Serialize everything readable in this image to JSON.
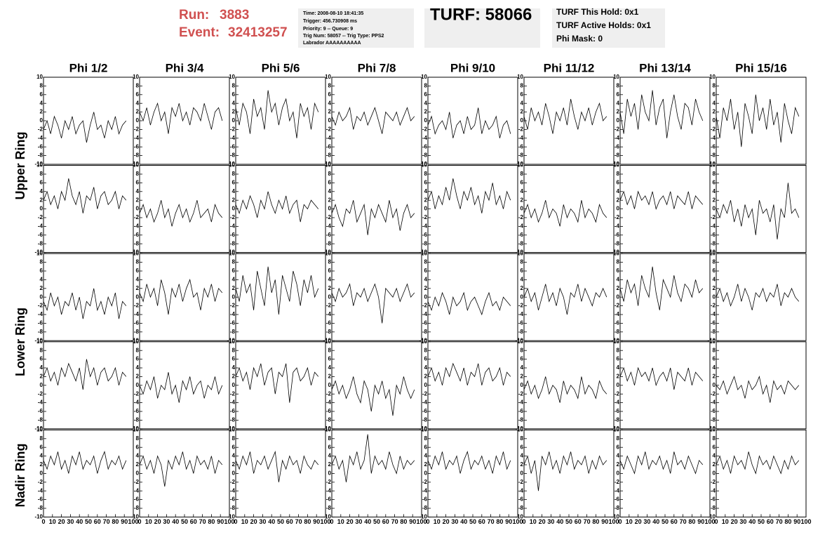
{
  "header": {
    "run_label": "Run:",
    "run_number": "3883",
    "event_label": "Event:",
    "event_number": "32413257",
    "info_lines": [
      "Time: 2008-08-10 18:41:35",
      "Trigger: 456.730908 ms",
      "Priority: 9 -- Queue: 9",
      "Trig Num: 58057 -- Trig Type: PPS2",
      "Labrador AAAAAAAAAA"
    ],
    "turf": "TURF: 58066",
    "turf_lines": [
      "TURF This Hold: 0x1",
      "TURF Active Holds: 0x1",
      "Phi Mask: 0"
    ]
  },
  "columns": [
    "Phi 1/2",
    "Phi 3/4",
    "Phi 5/6",
    "Phi 7/8",
    "Phi 9/10",
    "Phi 11/12",
    "Phi 13/14",
    "Phi 15/16"
  ],
  "row_labels": [
    "Upper Ring",
    "Lower Ring",
    "Nadir Ring"
  ],
  "axes": {
    "x": [
      0,
      4,
      8,
      12,
      16,
      20,
      24,
      28,
      32,
      36,
      40,
      44,
      48,
      52,
      56,
      60,
      64,
      68,
      72,
      76,
      80,
      84,
      88,
      92
    ],
    "xlim": [
      0,
      100
    ],
    "xticks": [
      0,
      10,
      20,
      30,
      40,
      50,
      60,
      70,
      80,
      90,
      100
    ],
    "ylim": [
      -10,
      10
    ],
    "yticks": [
      -10,
      -8,
      -6,
      -4,
      -2,
      0,
      2,
      4,
      6,
      8,
      10
    ]
  },
  "chart_data": [
    {
      "type": "line",
      "color": "#000000",
      "values": [
        -2,
        0,
        -3,
        1,
        -1,
        -4,
        0,
        -2,
        1,
        -3,
        -1,
        0,
        -5,
        -1,
        2,
        -2,
        -1,
        -4,
        0,
        -2,
        1,
        -3,
        -1,
        0
      ]
    },
    {
      "type": "line",
      "color": "#000000",
      "values": [
        2,
        0,
        3,
        -1,
        2,
        4,
        0,
        2,
        -3,
        3,
        1,
        4,
        0,
        2,
        -1,
        3,
        2,
        0,
        4,
        1,
        -2,
        2,
        3,
        0
      ]
    },
    {
      "type": "line",
      "color": "#000000",
      "values": [
        3,
        -1,
        4,
        2,
        -3,
        5,
        1,
        3,
        -2,
        7,
        2,
        4,
        -1,
        3,
        5,
        0,
        2,
        -4,
        4,
        1,
        3,
        -2,
        4,
        2
      ]
    },
    {
      "type": "line",
      "color": "#000000",
      "values": [
        1,
        -1,
        2,
        0,
        1,
        3,
        -2,
        1,
        0,
        2,
        -1,
        1,
        3,
        0,
        -3,
        2,
        1,
        0,
        2,
        -1,
        1,
        3,
        0,
        1
      ]
    },
    {
      "type": "line",
      "color": "#000000",
      "values": [
        -1,
        1,
        -3,
        -1,
        0,
        -2,
        2,
        -4,
        -1,
        0,
        -3,
        1,
        -2,
        -1,
        3,
        -3,
        0,
        -2,
        -1,
        1,
        -4,
        -1,
        0,
        -3
      ]
    },
    {
      "type": "line",
      "color": "#000000",
      "values": [
        1,
        -2,
        3,
        0,
        2,
        -1,
        4,
        1,
        -3,
        2,
        0,
        3,
        -1,
        5,
        1,
        -2,
        2,
        0,
        3,
        -1,
        2,
        4,
        0,
        1
      ]
    },
    {
      "type": "line",
      "color": "#000000",
      "values": [
        2,
        -3,
        5,
        1,
        4,
        -2,
        6,
        2,
        0,
        7,
        -1,
        3,
        5,
        -4,
        2,
        6,
        1,
        -2,
        4,
        3,
        -1,
        5,
        2,
        0
      ]
    },
    {
      "type": "line",
      "color": "#000000",
      "values": [
        1,
        -4,
        3,
        0,
        5,
        -2,
        2,
        -6,
        4,
        1,
        -3,
        6,
        0,
        3,
        -2,
        5,
        -1,
        2,
        -5,
        4,
        0,
        -3,
        3,
        1
      ]
    },
    {
      "type": "line",
      "color": "#000000",
      "values": [
        2,
        4,
        1,
        3,
        0,
        4,
        2,
        7,
        3,
        1,
        4,
        -1,
        3,
        2,
        5,
        0,
        3,
        4,
        1,
        2,
        4,
        0,
        3,
        2
      ]
    },
    {
      "type": "line",
      "color": "#000000",
      "values": [
        -1,
        1,
        -2,
        0,
        -3,
        -1,
        2,
        -2,
        0,
        -4,
        -1,
        1,
        -2,
        0,
        -3,
        -1,
        2,
        -2,
        -1,
        0,
        -3,
        1,
        -1,
        -2
      ]
    },
    {
      "type": "line",
      "color": "#000000",
      "values": [
        1,
        -1,
        2,
        0,
        3,
        1,
        -2,
        2,
        0,
        4,
        1,
        -1,
        2,
        0,
        3,
        -1,
        1,
        2,
        -3,
        1,
        0,
        2,
        1,
        0
      ]
    },
    {
      "type": "line",
      "color": "#000000",
      "values": [
        -1,
        1,
        -2,
        -4,
        0,
        -1,
        2,
        -3,
        -1,
        1,
        -6,
        0,
        -2,
        1,
        -1,
        -3,
        2,
        -2,
        0,
        -5,
        -1,
        1,
        -2,
        -1
      ]
    },
    {
      "type": "line",
      "color": "#000000",
      "values": [
        2,
        4,
        0,
        3,
        1,
        5,
        2,
        7,
        3,
        0,
        4,
        2,
        5,
        1,
        3,
        -1,
        4,
        2,
        6,
        1,
        3,
        0,
        4,
        2
      ]
    },
    {
      "type": "line",
      "color": "#000000",
      "values": [
        -1,
        1,
        -2,
        0,
        -3,
        -1,
        2,
        -2,
        0,
        -1,
        -4,
        1,
        -2,
        0,
        -1,
        -3,
        2,
        -2,
        0,
        -1,
        -3,
        1,
        -1,
        -2
      ]
    },
    {
      "type": "line",
      "color": "#000000",
      "values": [
        2,
        4,
        1,
        3,
        0,
        4,
        2,
        3,
        1,
        4,
        0,
        2,
        3,
        1,
        4,
        0,
        3,
        2,
        1,
        4,
        0,
        3,
        2,
        1
      ]
    },
    {
      "type": "line",
      "color": "#000000",
      "values": [
        0,
        -2,
        1,
        -1,
        2,
        -3,
        0,
        -4,
        1,
        -2,
        0,
        -6,
        2,
        -1,
        0,
        -3,
        1,
        -7,
        0,
        -2,
        6,
        -1,
        0,
        -2
      ]
    },
    {
      "type": "line",
      "color": "#000000",
      "values": [
        -1,
        -3,
        1,
        -2,
        0,
        -4,
        -1,
        -2,
        1,
        -3,
        0,
        -5,
        -1,
        -2,
        2,
        -3,
        -1,
        -4,
        0,
        -2,
        1,
        -5,
        -1,
        -2
      ]
    },
    {
      "type": "line",
      "color": "#000000",
      "values": [
        1,
        -1,
        3,
        0,
        2,
        -2,
        4,
        1,
        -4,
        2,
        0,
        3,
        -1,
        2,
        4,
        0,
        1,
        -3,
        2,
        0,
        3,
        -1,
        2,
        1
      ]
    },
    {
      "type": "line",
      "color": "#000000",
      "values": [
        2,
        -1,
        5,
        1,
        3,
        -3,
        6,
        2,
        -2,
        7,
        1,
        4,
        -4,
        5,
        2,
        -1,
        6,
        3,
        -2,
        4,
        1,
        5,
        0,
        2
      ]
    },
    {
      "type": "line",
      "color": "#000000",
      "values": [
        1,
        -1,
        2,
        0,
        1,
        3,
        -2,
        1,
        0,
        2,
        -1,
        1,
        3,
        0,
        -6,
        2,
        1,
        0,
        2,
        -1,
        1,
        3,
        0,
        1
      ]
    },
    {
      "type": "line",
      "color": "#000000",
      "values": [
        -1,
        -3,
        0,
        -2,
        1,
        -1,
        -4,
        0,
        -2,
        -1,
        1,
        -3,
        -1,
        0,
        -2,
        -4,
        -1,
        1,
        -2,
        -1,
        -3,
        0,
        -1,
        -2
      ]
    },
    {
      "type": "line",
      "color": "#000000",
      "values": [
        0,
        2,
        -1,
        1,
        -3,
        0,
        3,
        -1,
        1,
        -2,
        2,
        0,
        -4,
        1,
        0,
        3,
        -1,
        2,
        0,
        -2,
        1,
        0,
        2,
        0
      ]
    },
    {
      "type": "line",
      "color": "#000000",
      "values": [
        2,
        -1,
        4,
        1,
        3,
        -2,
        5,
        2,
        0,
        7,
        1,
        -3,
        4,
        2,
        0,
        5,
        1,
        -1,
        3,
        2,
        0,
        4,
        1,
        2
      ]
    },
    {
      "type": "line",
      "color": "#000000",
      "values": [
        0,
        2,
        -1,
        1,
        -2,
        0,
        3,
        -1,
        2,
        0,
        -3,
        1,
        0,
        2,
        -1,
        1,
        0,
        3,
        -2,
        1,
        0,
        2,
        0,
        -1
      ]
    },
    {
      "type": "line",
      "color": "#000000",
      "values": [
        2,
        4,
        1,
        3,
        0,
        4,
        2,
        5,
        3,
        1,
        4,
        -1,
        6,
        2,
        4,
        0,
        3,
        4,
        1,
        2,
        4,
        0,
        3,
        2
      ]
    },
    {
      "type": "line",
      "color": "#000000",
      "values": [
        0,
        -2,
        1,
        -1,
        2,
        -3,
        0,
        -1,
        3,
        -2,
        0,
        -4,
        1,
        -1,
        2,
        -2,
        0,
        1,
        -3,
        0,
        -1,
        2,
        -2,
        0
      ]
    },
    {
      "type": "line",
      "color": "#000000",
      "values": [
        2,
        4,
        1,
        3,
        -1,
        4,
        2,
        5,
        0,
        3,
        4,
        -2,
        3,
        2,
        5,
        -4,
        3,
        4,
        1,
        2,
        4,
        0,
        3,
        2
      ]
    },
    {
      "type": "line",
      "color": "#000000",
      "values": [
        -1,
        1,
        -2,
        0,
        -3,
        -1,
        2,
        -2,
        -4,
        1,
        -1,
        -6,
        0,
        -2,
        1,
        -3,
        -1,
        -7,
        0,
        -2,
        2,
        -1,
        -3,
        -1
      ]
    },
    {
      "type": "line",
      "color": "#000000",
      "values": [
        2,
        4,
        1,
        3,
        0,
        4,
        2,
        5,
        3,
        1,
        4,
        0,
        3,
        2,
        5,
        0,
        3,
        4,
        1,
        2,
        4,
        0,
        3,
        2
      ]
    },
    {
      "type": "line",
      "color": "#000000",
      "values": [
        -1,
        1,
        -2,
        0,
        -3,
        -1,
        2,
        -2,
        0,
        -1,
        -4,
        1,
        -2,
        0,
        -1,
        -3,
        2,
        -2,
        0,
        -1,
        -3,
        1,
        -1,
        -2
      ]
    },
    {
      "type": "line",
      "color": "#000000",
      "values": [
        2,
        4,
        1,
        3,
        0,
        4,
        2,
        3,
        1,
        4,
        0,
        2,
        3,
        1,
        4,
        -1,
        3,
        2,
        1,
        4,
        0,
        3,
        2,
        1
      ]
    },
    {
      "type": "line",
      "color": "#000000",
      "values": [
        0,
        -1,
        1,
        -2,
        0,
        2,
        -1,
        0,
        -3,
        1,
        -1,
        0,
        2,
        -2,
        0,
        -4,
        1,
        -1,
        0,
        -2,
        1,
        0,
        -1,
        0
      ]
    },
    {
      "type": "line",
      "color": "#000000",
      "values": [
        3,
        1,
        4,
        2,
        5,
        1,
        3,
        0,
        4,
        2,
        5,
        1,
        3,
        2,
        4,
        0,
        3,
        5,
        1,
        3,
        2,
        4,
        1,
        3
      ]
    },
    {
      "type": "line",
      "color": "#000000",
      "values": [
        2,
        4,
        1,
        3,
        0,
        4,
        2,
        -3,
        3,
        1,
        4,
        2,
        5,
        1,
        3,
        0,
        4,
        2,
        3,
        1,
        4,
        0,
        3,
        2
      ]
    },
    {
      "type": "line",
      "color": "#000000",
      "values": [
        3,
        1,
        4,
        2,
        5,
        0,
        3,
        2,
        4,
        1,
        3,
        5,
        -2,
        3,
        1,
        4,
        2,
        3,
        0,
        4,
        2,
        1,
        3,
        2
      ]
    },
    {
      "type": "line",
      "color": "#000000",
      "values": [
        2,
        4,
        1,
        3,
        -2,
        4,
        2,
        5,
        1,
        3,
        9,
        0,
        4,
        2,
        3,
        1,
        5,
        2,
        0,
        4,
        1,
        3,
        2,
        3
      ]
    },
    {
      "type": "line",
      "color": "#000000",
      "values": [
        3,
        1,
        4,
        2,
        5,
        1,
        3,
        2,
        4,
        0,
        3,
        5,
        1,
        3,
        2,
        4,
        1,
        3,
        0,
        4,
        2,
        5,
        1,
        3
      ]
    },
    {
      "type": "line",
      "color": "#000000",
      "values": [
        2,
        4,
        0,
        3,
        -4,
        4,
        2,
        5,
        1,
        3,
        0,
        4,
        2,
        5,
        1,
        3,
        2,
        4,
        0,
        3,
        1,
        4,
        2,
        3
      ]
    },
    {
      "type": "line",
      "color": "#000000",
      "values": [
        3,
        1,
        4,
        2,
        0,
        4,
        2,
        5,
        1,
        3,
        2,
        4,
        1,
        3,
        0,
        5,
        2,
        3,
        1,
        4,
        2,
        0,
        3,
        2
      ]
    },
    {
      "type": "line",
      "color": "#000000",
      "values": [
        2,
        4,
        1,
        3,
        0,
        4,
        2,
        3,
        1,
        5,
        2,
        0,
        4,
        2,
        3,
        1,
        4,
        2,
        0,
        3,
        1,
        4,
        2,
        3
      ]
    }
  ]
}
